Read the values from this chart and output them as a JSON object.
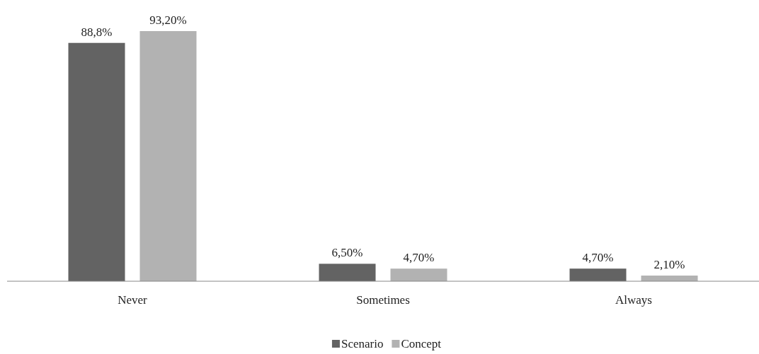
{
  "chart_data": {
    "type": "bar",
    "categories": [
      "Never",
      "Sometimes",
      "Always"
    ],
    "series": [
      {
        "name": "Scenario",
        "color": "#636363",
        "values": [
          88.8,
          6.5,
          4.7
        ],
        "value_labels": [
          "88,8%",
          "6,50%",
          "4,70%"
        ]
      },
      {
        "name": "Concept",
        "color": "#b2b2b2",
        "values": [
          93.2,
          4.7,
          2.1
        ],
        "value_labels": [
          "93,20%",
          "4,70%",
          "2,10%"
        ]
      }
    ],
    "legend": "bottom"
  }
}
